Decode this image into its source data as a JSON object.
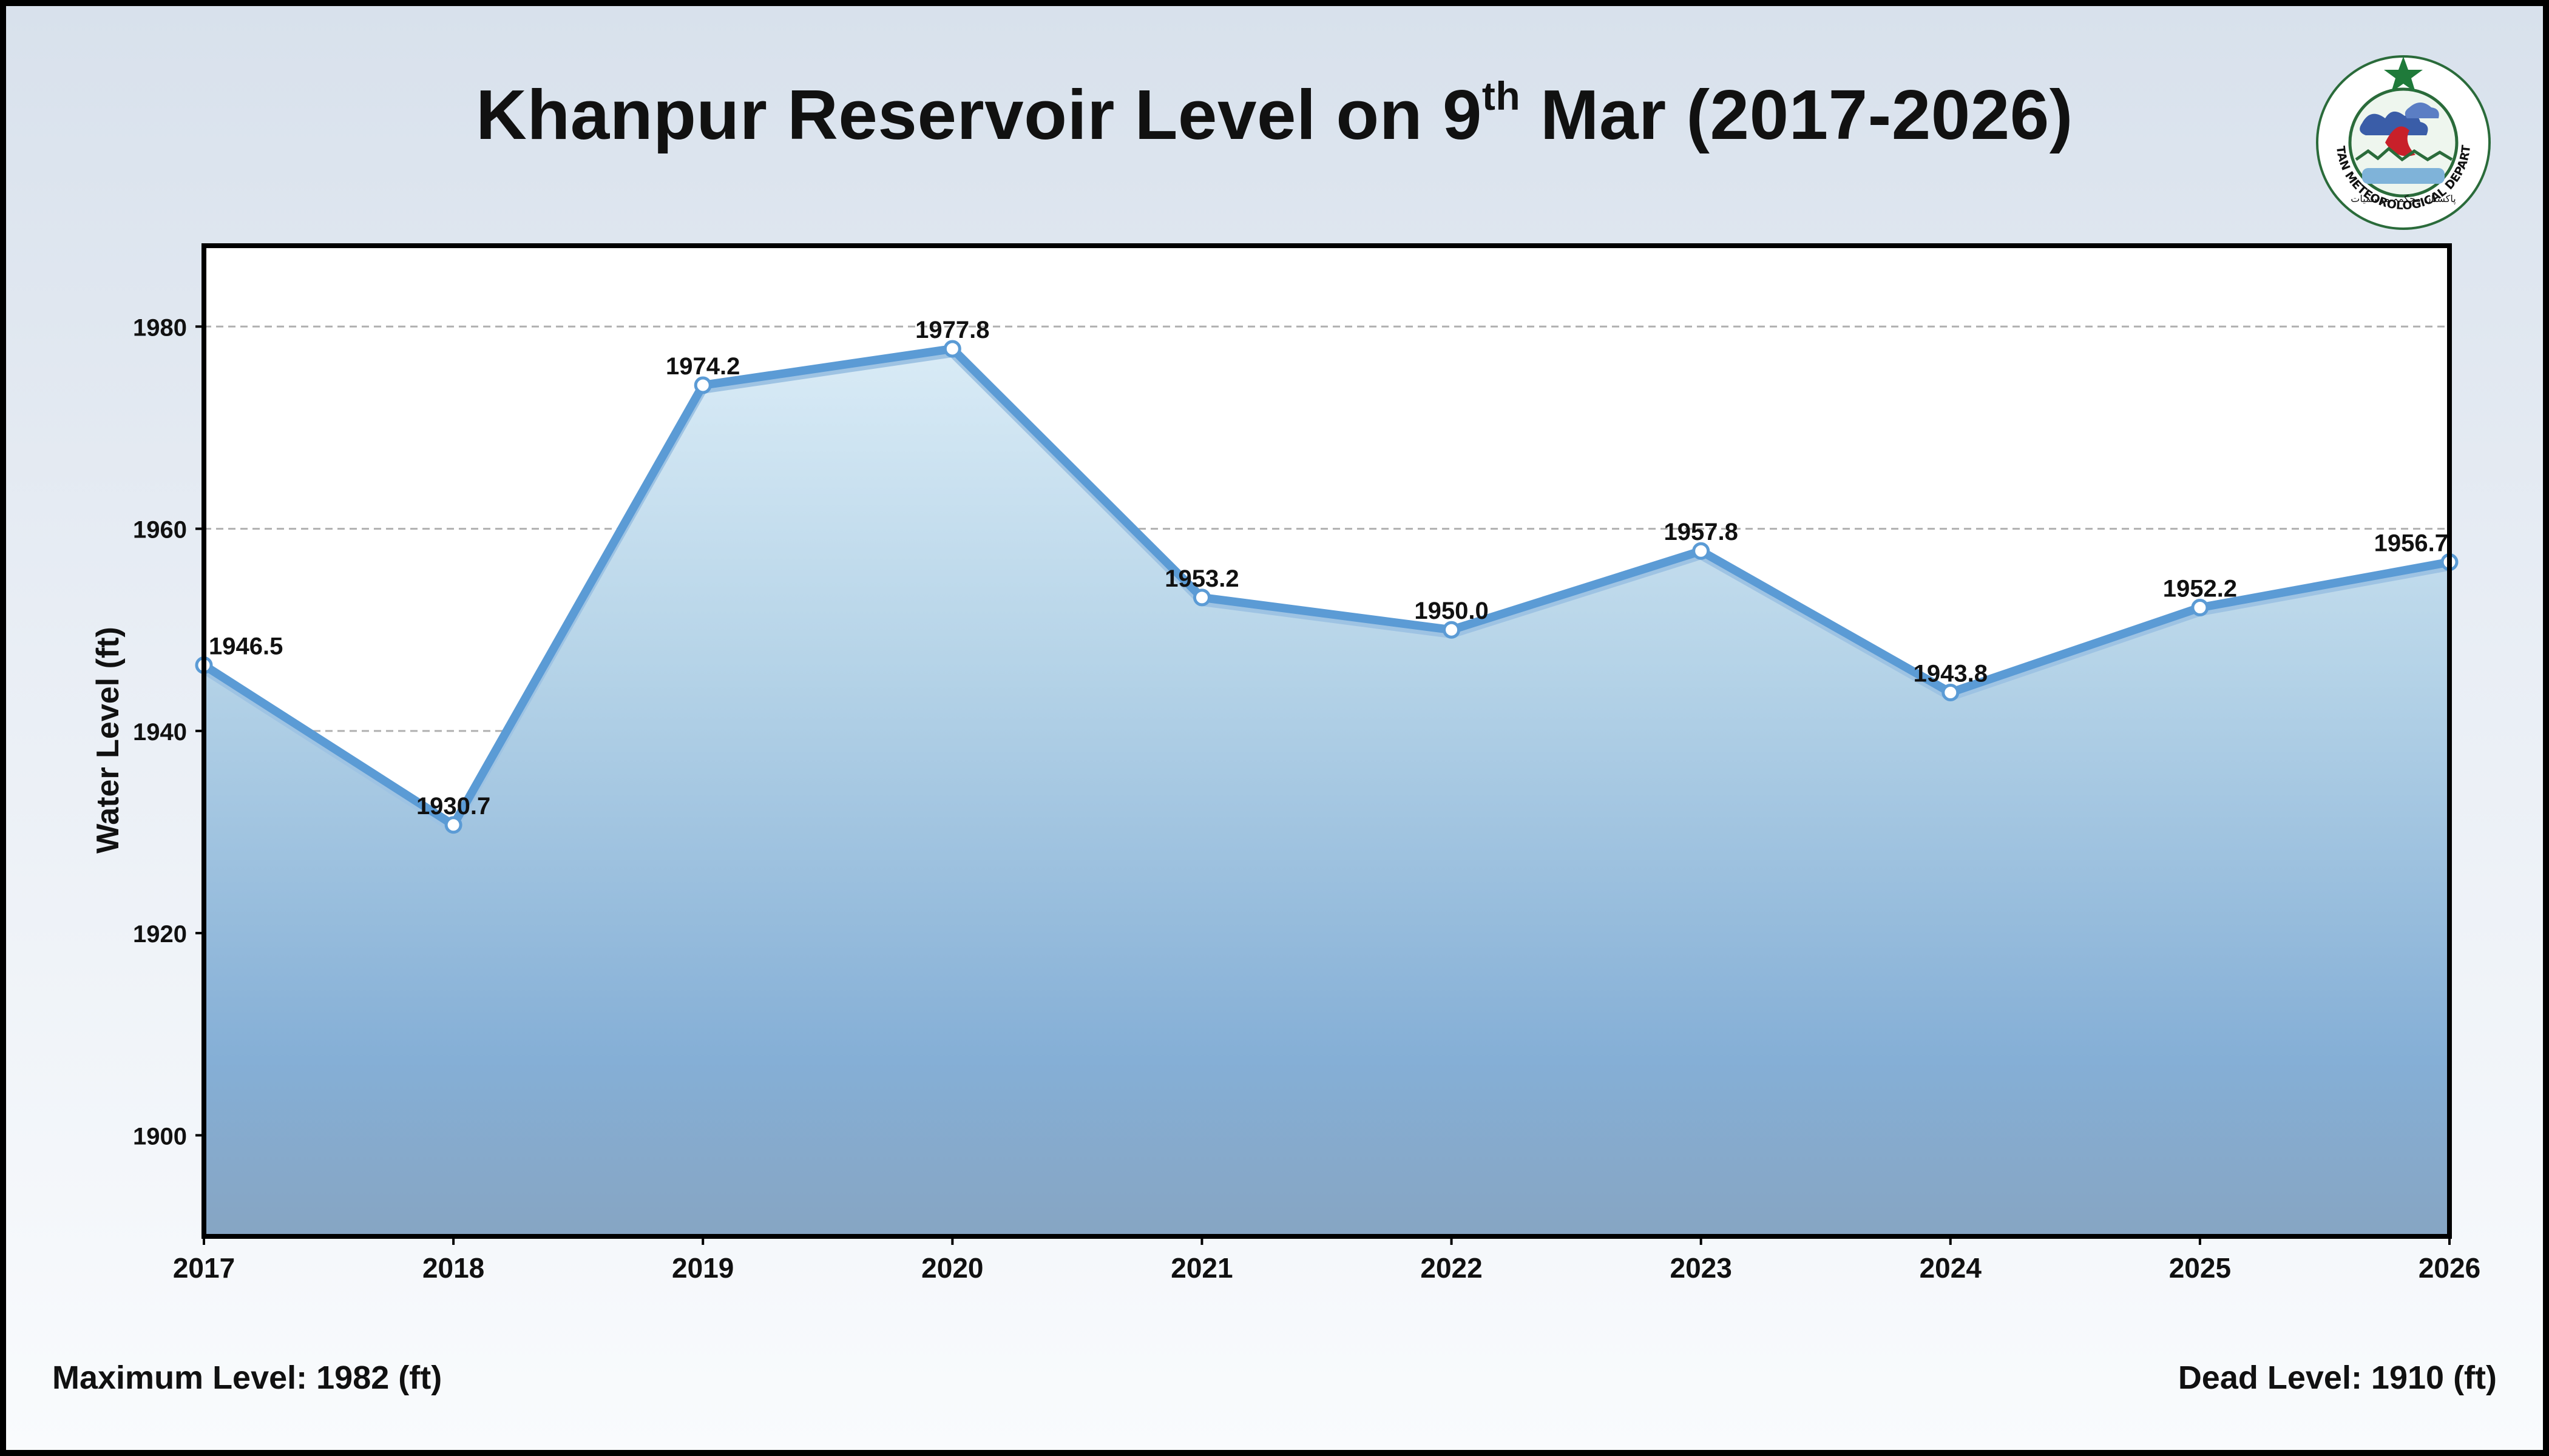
{
  "title": {
    "prefix": "Khanpur Reservoir Level on 9",
    "superscript": "th",
    "suffix": " Mar (2017-2026)"
  },
  "logo": {
    "icon": "pakistan-meteorological-department-seal-icon",
    "text": "PAKISTAN METEOROLOGICAL DEPARTMENT",
    "urdu": "پاکستان محکمہ موسمیات"
  },
  "footer": {
    "left": "Maximum Level: 1982 (ft)",
    "right": "Dead Level: 1910 (ft)"
  },
  "colors": {
    "line": "#5b9bd5",
    "area_top": "#cfe3f0",
    "area_bottom": "#86a5c3",
    "gridline": "#b0b0b0"
  },
  "chart_data": {
    "type": "area",
    "title": "Khanpur Reservoir Level on 9th Mar (2017-2026)",
    "xlabel": "",
    "ylabel": "Water Level (ft)",
    "x": [
      2017,
      2018,
      2019,
      2020,
      2021,
      2022,
      2023,
      2024,
      2025,
      2026
    ],
    "x_tick_labels": [
      "2017",
      "2018",
      "2019",
      "2020",
      "2021",
      "2022",
      "2023",
      "2024",
      "2025",
      "2026"
    ],
    "values": [
      1946.5,
      1930.7,
      1974.2,
      1977.8,
      1953.2,
      1950.0,
      1957.8,
      1943.8,
      1952.2,
      1956.7
    ],
    "value_labels": [
      "1946.5",
      "1930.7",
      "1974.2",
      "1977.8",
      "1953.2",
      "1950.0",
      "1957.8",
      "1943.8",
      "1952.2",
      "1956.7"
    ],
    "ylim": [
      1890,
      1988
    ],
    "y_ticks": [
      1900,
      1920,
      1940,
      1960,
      1980
    ],
    "y_tick_labels": [
      "1900",
      "1920",
      "1940",
      "1960",
      "1980"
    ],
    "grid": "horizontal dashed",
    "legend": "none"
  }
}
